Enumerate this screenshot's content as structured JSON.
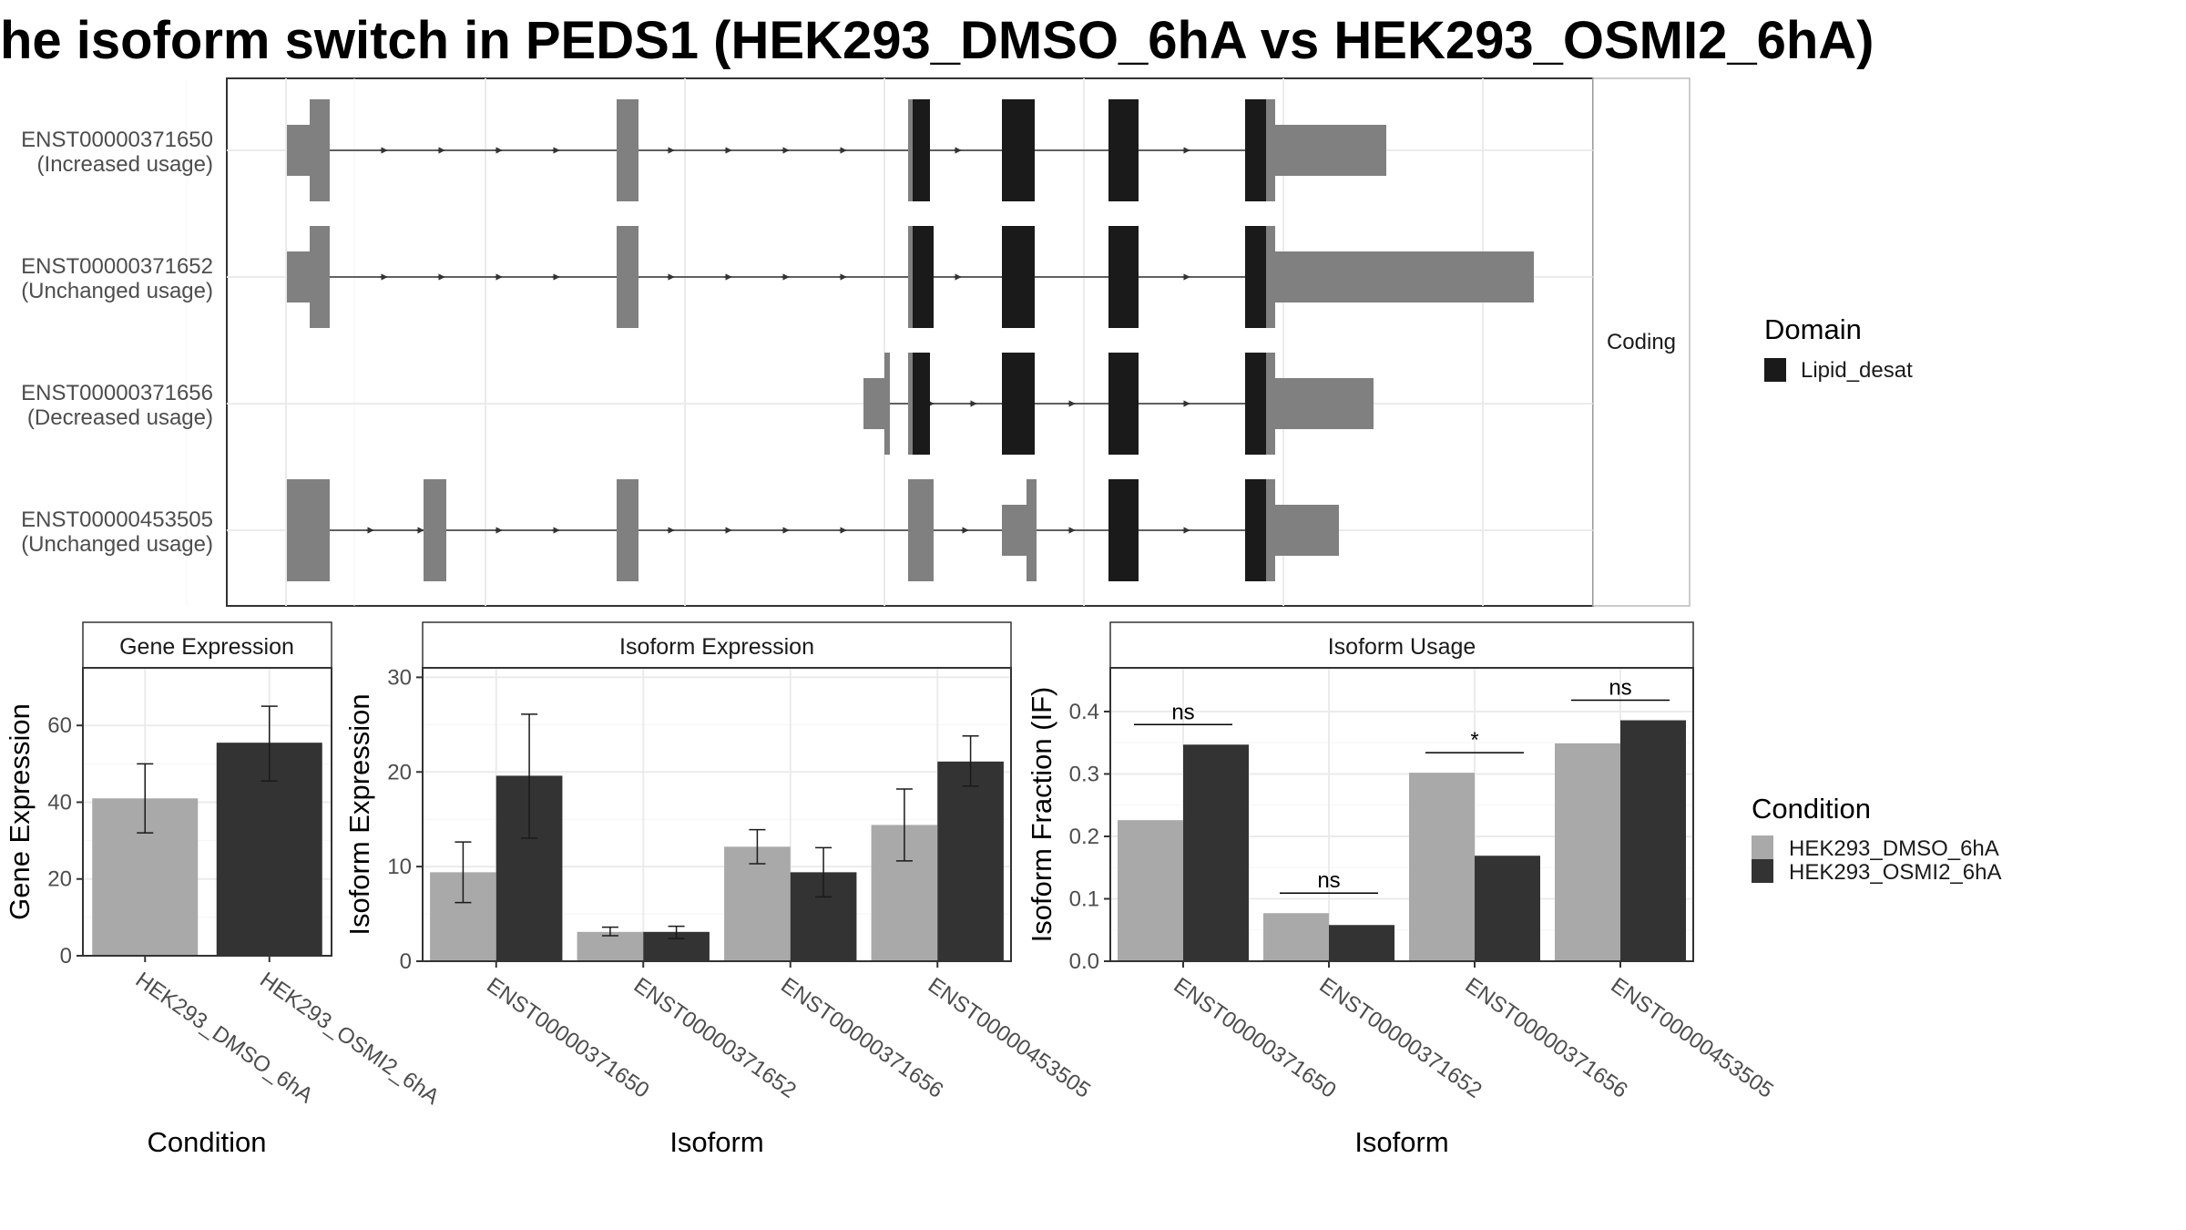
{
  "title": "he isoform switch in PEDS1 (HEK293_DMSO_6hA vs HEK293_OSMI2_6hA)",
  "colors": {
    "exon_noncoding": "#808080",
    "exon_domain": "#1a1a1a",
    "dmso": "#a9a9a9",
    "osmi2": "#333333",
    "grid": "#ebebeb"
  },
  "chart_data": [
    {
      "type": "gene-structure",
      "facet_label": "Coding",
      "isoforms": [
        {
          "id": "ENST00000371650",
          "note": "(Increased usage)"
        },
        {
          "id": "ENST00000371652",
          "note": "(Unchanged usage)"
        },
        {
          "id": "ENST00000371656",
          "note": "(Decreased usage)"
        },
        {
          "id": "ENST00000453505",
          "note": "(Unchanged usage)"
        }
      ],
      "legend": {
        "title": "Domain",
        "entries": [
          {
            "label": "Lipid_desat",
            "color": "#1a1a1a"
          }
        ]
      }
    },
    {
      "type": "bar",
      "title": "Gene Expression",
      "xlabel": "Condition",
      "ylabel": "Gene Expression",
      "categories": [
        "HEK293_DMSO_6hA",
        "HEK293_OSMI2_6hA"
      ],
      "values": [
        41,
        55.5
      ],
      "error": [
        [
          32,
          50
        ],
        [
          45.5,
          65
        ]
      ],
      "ylim": [
        0,
        75
      ],
      "yticks": [
        0,
        20,
        40,
        60
      ]
    },
    {
      "type": "bar",
      "title": "Isoform Expression",
      "xlabel": "Isoform",
      "ylabel": "Isoform Expression",
      "categories": [
        "ENST00000371650",
        "ENST00000371652",
        "ENST00000371656",
        "ENST00000453505"
      ],
      "series": [
        {
          "name": "HEK293_DMSO_6hA",
          "values": [
            9.4,
            3.1,
            12.1,
            14.4
          ],
          "error": [
            [
              6.2,
              12.6
            ],
            [
              2.7,
              3.6
            ],
            [
              10.3,
              13.9
            ],
            [
              10.6,
              18.2
            ]
          ]
        },
        {
          "name": "HEK293_OSMI2_6hA",
          "values": [
            19.6,
            3.1,
            9.4,
            21.1
          ],
          "error": [
            [
              13.0,
              26.1
            ],
            [
              2.4,
              3.7
            ],
            [
              6.8,
              12.0
            ],
            [
              18.5,
              23.8
            ]
          ]
        }
      ],
      "ylim": [
        0,
        31
      ],
      "yticks": [
        0,
        10,
        20,
        30
      ]
    },
    {
      "type": "bar",
      "title": "Isoform Usage",
      "xlabel": "Isoform",
      "ylabel": "Isoform Fraction (IF)",
      "categories": [
        "ENST00000371650",
        "ENST00000371652",
        "ENST00000371656",
        "ENST00000453505"
      ],
      "series": [
        {
          "name": "HEK293_DMSO_6hA",
          "values": [
            0.226,
            0.077,
            0.302,
            0.349
          ]
        },
        {
          "name": "HEK293_OSMI2_6hA",
          "values": [
            0.347,
            0.058,
            0.169,
            0.386
          ]
        }
      ],
      "significance": [
        "ns",
        "ns",
        "*",
        "ns"
      ],
      "ylim": [
        0,
        0.47
      ],
      "yticks": [
        "0.0",
        "0.1",
        "0.2",
        "0.3",
        "0.4"
      ]
    }
  ],
  "condition_legend": {
    "title": "Condition",
    "entries": [
      {
        "label": "HEK293_DMSO_6hA",
        "color": "#a9a9a9"
      },
      {
        "label": "HEK293_OSMI2_6hA",
        "color": "#333333"
      }
    ]
  }
}
